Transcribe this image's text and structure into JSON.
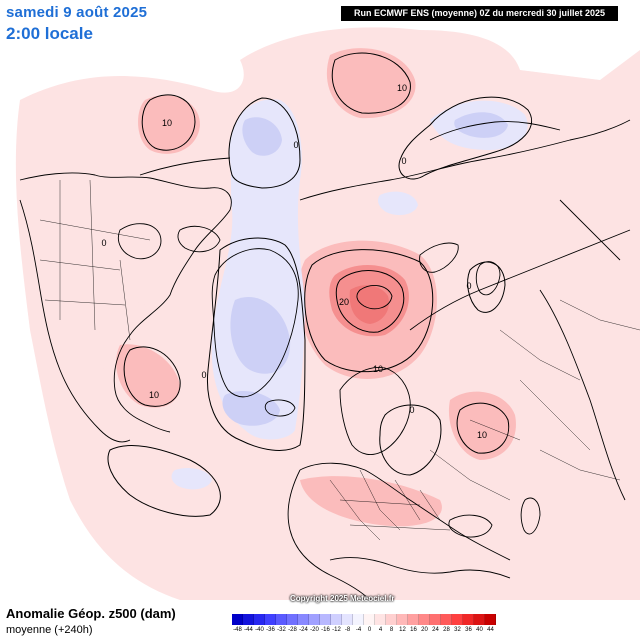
{
  "header": {
    "date": "samedi 9 août 2025",
    "time": "2:00 locale",
    "run_info": "Run ECMWF ENS (moyenne) 0Z du mercredi 30 juillet 2025"
  },
  "footer": {
    "title": "Anomalie Géop. z500 (dam)",
    "subtitle": "moyenne   (+240h)",
    "copyright": "Copyright 2025 Meteociel.fr"
  },
  "color_scale": {
    "ticks": [
      "-48",
      "-44",
      "-40",
      "-36",
      "-32",
      "-28",
      "-24",
      "-20",
      "-16",
      "-12",
      "-8",
      "-4",
      "0",
      "4",
      "8",
      "12",
      "16",
      "20",
      "24",
      "28",
      "32",
      "36",
      "40",
      "44"
    ],
    "colors": [
      "#0000c8",
      "#1414dc",
      "#2828f0",
      "#4040ff",
      "#5a5aff",
      "#7070ff",
      "#8888ff",
      "#a0a0ff",
      "#b8b8ff",
      "#d0d0ff",
      "#e4e4ff",
      "#f4f4ff",
      "#fff4f4",
      "#ffe4e4",
      "#ffd0d0",
      "#ffb8b8",
      "#ffa0a0",
      "#ff8888",
      "#ff7070",
      "#ff5a5a",
      "#ff4040",
      "#f02828",
      "#dc1414",
      "#c80000"
    ]
  },
  "contour_labels": [
    "10",
    "10",
    "0",
    "0",
    "0",
    "0",
    "20",
    "10",
    "0",
    "10",
    "10",
    "0"
  ],
  "anomaly_colors": {
    "positive_light": "#fde3e3",
    "positive_mid": "#fbbcbc",
    "positive_strong": "#f58f8f",
    "negative_light": "#e6e6fb",
    "negative_mid": "#cdd0f6"
  }
}
